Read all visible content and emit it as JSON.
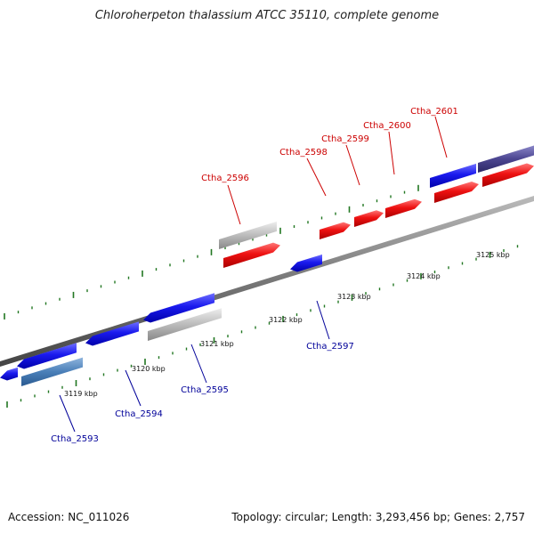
{
  "title": "Chloroherpeton thalassium ATCC 35110, complete genome",
  "footer": {
    "accession": "Accession: NC_011026",
    "summary": "Topology: circular; Length: 3,293,456 bp; Genes: 2,757"
  },
  "colors": {
    "forward_label": "#cc0000",
    "reverse_label": "#000099",
    "tick": "#227722",
    "backbone": "#777777"
  },
  "scale_ticks": [
    {
      "label": "3119 kbp"
    },
    {
      "label": "3120 kbp"
    },
    {
      "label": "3121 kbp"
    },
    {
      "label": "3122 kbp"
    },
    {
      "label": "3123 kbp"
    },
    {
      "label": "3124 kbp"
    },
    {
      "label": "3125 kbp"
    }
  ],
  "forward_genes": [
    {
      "label": "Ctha_2596",
      "color": "#ee1111"
    },
    {
      "label": "Ctha_2598",
      "color": "#ee1111"
    },
    {
      "label": "Ctha_2599",
      "color": "#ee1111"
    },
    {
      "label": "Ctha_2600",
      "color": "#ee1111"
    },
    {
      "label": "Ctha_2601",
      "color": "#ee1111"
    }
  ],
  "reverse_genes": [
    {
      "label": "Ctha_2593",
      "color": "#1a1aee"
    },
    {
      "label": "Ctha_2594",
      "color": "#1a1aee"
    },
    {
      "label": "Ctha_2595",
      "color": "#1a1aee"
    },
    {
      "label": "Ctha_2597",
      "color": "#1a1aee"
    }
  ]
}
